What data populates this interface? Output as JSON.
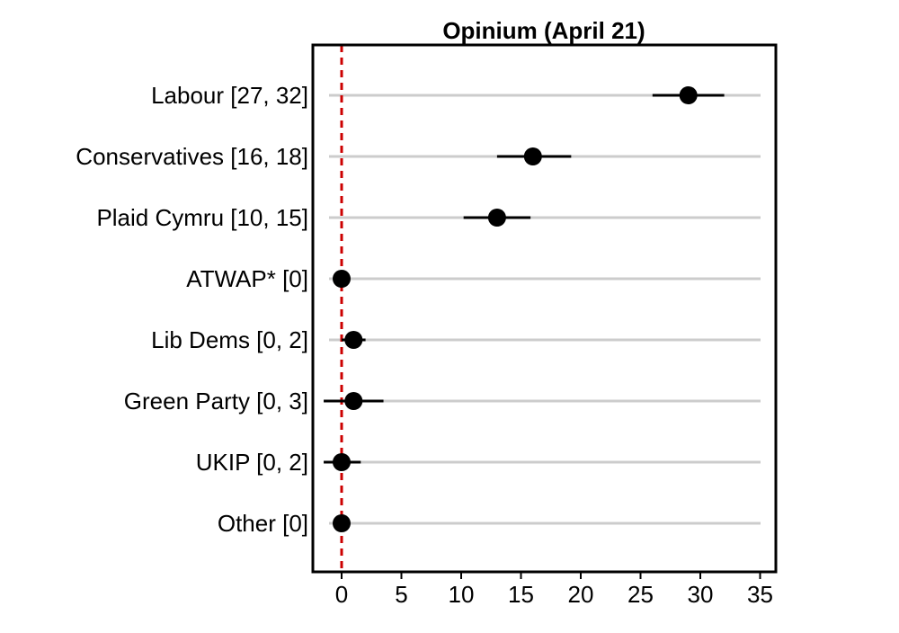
{
  "chart_data": {
    "type": "scatter",
    "title": "Opinium (April 21)",
    "xlabel": "",
    "ylabel": "",
    "xlim": [
      -2.5,
      36.5
    ],
    "xticks": [
      0,
      5,
      10,
      15,
      20,
      25,
      30,
      35
    ],
    "reference_line": {
      "x": 0,
      "color": "#cc0000",
      "style": "dashed"
    },
    "grid": "horizontal",
    "categories": [
      {
        "label": "Labour [27, 32]",
        "value": 29,
        "low": 26,
        "high": 32
      },
      {
        "label": "Conservatives [16, 18]",
        "value": 16,
        "low": 13,
        "high": 19.2
      },
      {
        "label": "Plaid Cymru [10, 15]",
        "value": 13,
        "low": 10.2,
        "high": 15.8
      },
      {
        "label": "ATWAP* [0]",
        "value": 0,
        "low": -0.6,
        "high": 0.7
      },
      {
        "label": "Lib Dems [0, 2]",
        "value": 1,
        "low": 0,
        "high": 2
      },
      {
        "label": "Green Party [0, 3]",
        "value": 1,
        "low": -1.5,
        "high": 3.5
      },
      {
        "label": "UKIP [0, 2]",
        "value": 0,
        "low": -1.5,
        "high": 1.6
      },
      {
        "label": "Other [0]",
        "value": 0,
        "low": -0.6,
        "high": 0.7
      }
    ]
  }
}
